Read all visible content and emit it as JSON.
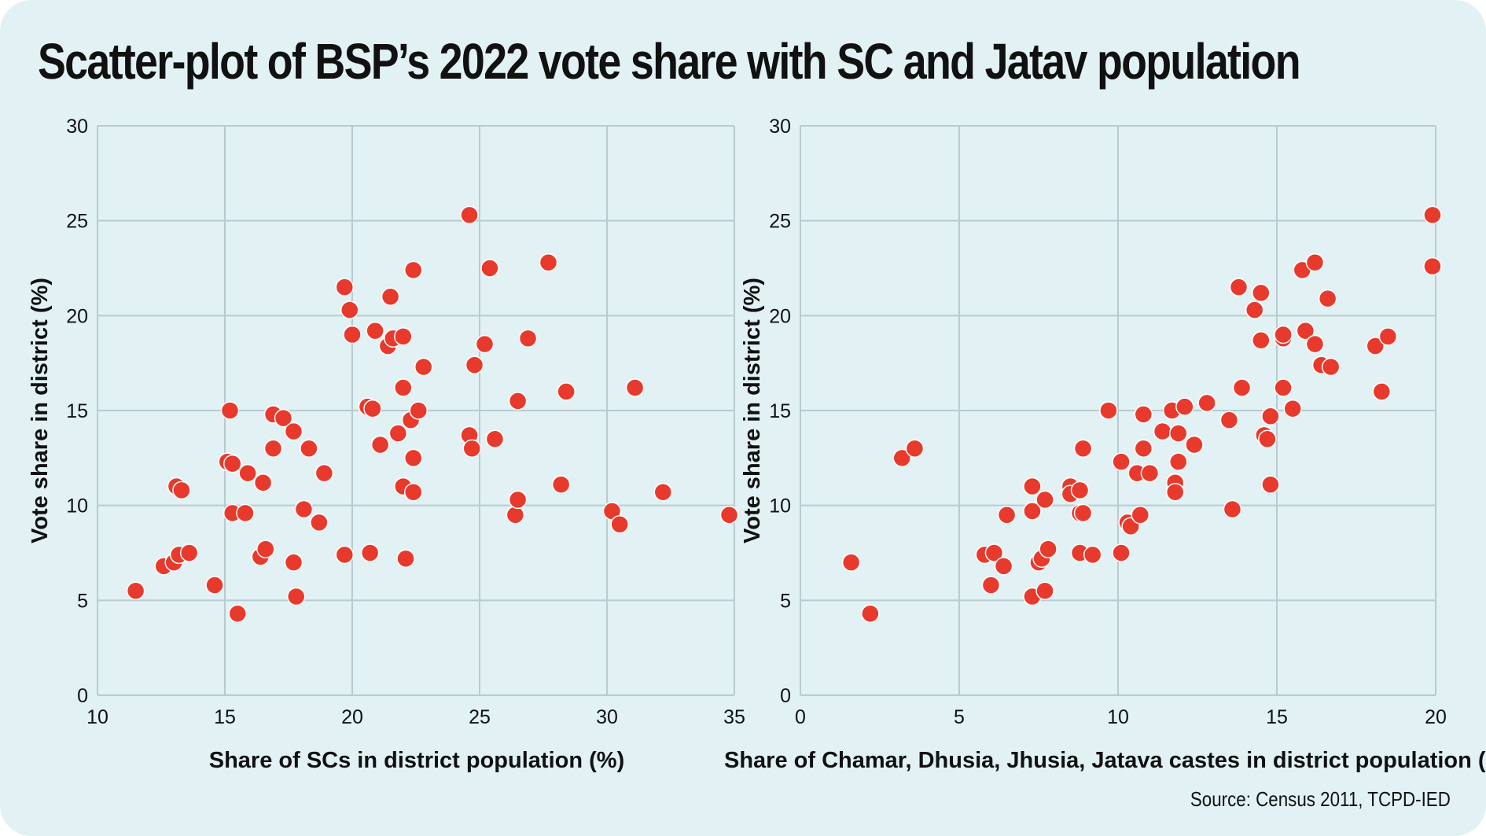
{
  "title": "Scatter-plot of BSP’s 2022 vote share with SC and Jatav population",
  "source": "Source: Census 2011, TCPD-IED",
  "colors": {
    "background": "#e1f1f4",
    "point": "#e8392d",
    "grid": "#b9cbd1",
    "text": "#111111"
  },
  "chart_data": [
    {
      "type": "scatter",
      "xlabel": "Share of SCs in district population (%)",
      "ylabel": "Vote share in district (%)",
      "xlim": [
        10,
        35
      ],
      "ylim": [
        0,
        30
      ],
      "xticks": [
        10,
        15,
        20,
        25,
        30,
        35
      ],
      "yticks": [
        0,
        5,
        10,
        15,
        20,
        25,
        30
      ],
      "grid": true,
      "points": [
        [
          11.5,
          5.5
        ],
        [
          12.6,
          6.8
        ],
        [
          13.0,
          7.0
        ],
        [
          13.2,
          7.4
        ],
        [
          13.6,
          7.5
        ],
        [
          13.1,
          11.0
        ],
        [
          13.3,
          10.8
        ],
        [
          14.6,
          5.8
        ],
        [
          15.1,
          12.3
        ],
        [
          15.3,
          12.2
        ],
        [
          15.2,
          15.0
        ],
        [
          15.3,
          9.6
        ],
        [
          15.5,
          4.3
        ],
        [
          15.8,
          9.6
        ],
        [
          15.9,
          11.7
        ],
        [
          16.5,
          11.2
        ],
        [
          16.4,
          7.3
        ],
        [
          16.6,
          7.7
        ],
        [
          16.9,
          13.0
        ],
        [
          16.9,
          14.8
        ],
        [
          17.3,
          14.6
        ],
        [
          17.7,
          13.9
        ],
        [
          17.7,
          7.0
        ],
        [
          17.8,
          5.2
        ],
        [
          18.1,
          9.8
        ],
        [
          18.3,
          13.0
        ],
        [
          18.7,
          9.1
        ],
        [
          18.9,
          11.7
        ],
        [
          19.7,
          21.5
        ],
        [
          19.9,
          20.3
        ],
        [
          20.0,
          19.0
        ],
        [
          19.7,
          7.4
        ],
        [
          20.6,
          15.2
        ],
        [
          20.8,
          15.1
        ],
        [
          20.7,
          7.5
        ],
        [
          20.9,
          19.2
        ],
        [
          21.1,
          13.2
        ],
        [
          21.4,
          18.4
        ],
        [
          21.5,
          21.0
        ],
        [
          21.6,
          18.8
        ],
        [
          21.8,
          13.8
        ],
        [
          22.0,
          18.9
        ],
        [
          22.0,
          16.2
        ],
        [
          22.0,
          11.0
        ],
        [
          22.1,
          7.2
        ],
        [
          22.3,
          14.5
        ],
        [
          22.4,
          12.5
        ],
        [
          22.4,
          10.7
        ],
        [
          22.4,
          22.4
        ],
        [
          22.6,
          15.0
        ],
        [
          22.8,
          17.3
        ],
        [
          24.6,
          13.7
        ],
        [
          24.6,
          25.3
        ],
        [
          24.7,
          13.0
        ],
        [
          24.8,
          17.4
        ],
        [
          25.2,
          18.5
        ],
        [
          25.4,
          22.5
        ],
        [
          25.6,
          13.5
        ],
        [
          26.4,
          9.5
        ],
        [
          26.5,
          10.3
        ],
        [
          26.5,
          15.5
        ],
        [
          26.9,
          18.8
        ],
        [
          27.7,
          22.8
        ],
        [
          28.2,
          11.1
        ],
        [
          28.4,
          16.0
        ],
        [
          30.2,
          9.7
        ],
        [
          30.5,
          9.0
        ],
        [
          31.1,
          16.2
        ],
        [
          32.2,
          10.7
        ],
        [
          34.8,
          9.5
        ]
      ]
    },
    {
      "type": "scatter",
      "xlabel": "Share of Chamar, Dhusia, Jhusia, Jatava castes in district population (%)",
      "ylabel": "Vote share in district (%)",
      "xlim": [
        0,
        20
      ],
      "ylim": [
        0,
        30
      ],
      "xticks": [
        0,
        5,
        10,
        15,
        20
      ],
      "yticks": [
        0,
        5,
        10,
        15,
        20,
        25,
        30
      ],
      "grid": true,
      "points": [
        [
          1.6,
          7.0
        ],
        [
          2.2,
          4.3
        ],
        [
          3.2,
          12.5
        ],
        [
          3.6,
          13.0
        ],
        [
          5.8,
          7.4
        ],
        [
          6.0,
          5.8
        ],
        [
          6.1,
          7.5
        ],
        [
          6.4,
          6.8
        ],
        [
          6.5,
          9.5
        ],
        [
          7.3,
          11.0
        ],
        [
          7.3,
          9.7
        ],
        [
          7.3,
          5.2
        ],
        [
          7.5,
          7.0
        ],
        [
          7.6,
          7.2
        ],
        [
          7.7,
          10.3
        ],
        [
          7.7,
          5.5
        ],
        [
          7.8,
          7.7
        ],
        [
          8.5,
          11.0
        ],
        [
          8.5,
          10.6
        ],
        [
          8.8,
          10.8
        ],
        [
          8.8,
          9.6
        ],
        [
          8.9,
          9.6
        ],
        [
          8.8,
          7.5
        ],
        [
          8.9,
          13.0
        ],
        [
          9.2,
          7.4
        ],
        [
          9.7,
          15.0
        ],
        [
          10.1,
          12.3
        ],
        [
          10.1,
          7.5
        ],
        [
          10.3,
          9.1
        ],
        [
          10.4,
          8.9
        ],
        [
          10.6,
          11.7
        ],
        [
          10.7,
          9.5
        ],
        [
          10.8,
          14.8
        ],
        [
          10.8,
          13.0
        ],
        [
          11.0,
          11.7
        ],
        [
          11.4,
          13.9
        ],
        [
          11.7,
          15.0
        ],
        [
          11.8,
          11.2
        ],
        [
          11.8,
          10.7
        ],
        [
          11.9,
          12.3
        ],
        [
          11.9,
          13.8
        ],
        [
          12.1,
          15.2
        ],
        [
          12.4,
          13.2
        ],
        [
          12.8,
          15.4
        ],
        [
          13.5,
          14.5
        ],
        [
          13.6,
          9.8
        ],
        [
          13.8,
          21.5
        ],
        [
          13.9,
          16.2
        ],
        [
          14.3,
          20.3
        ],
        [
          14.5,
          18.7
        ],
        [
          14.5,
          21.2
        ],
        [
          14.6,
          13.7
        ],
        [
          14.7,
          13.5
        ],
        [
          14.8,
          14.7
        ],
        [
          14.8,
          11.1
        ],
        [
          15.2,
          16.2
        ],
        [
          15.2,
          18.8
        ],
        [
          15.2,
          19.0
        ],
        [
          15.5,
          15.1
        ],
        [
          15.8,
          22.4
        ],
        [
          15.9,
          19.2
        ],
        [
          16.2,
          18.5
        ],
        [
          16.2,
          22.8
        ],
        [
          16.4,
          17.4
        ],
        [
          16.7,
          17.3
        ],
        [
          16.6,
          20.9
        ],
        [
          18.1,
          18.4
        ],
        [
          18.3,
          16.0
        ],
        [
          18.5,
          18.9
        ],
        [
          19.9,
          25.3
        ],
        [
          19.9,
          22.6
        ]
      ]
    }
  ]
}
